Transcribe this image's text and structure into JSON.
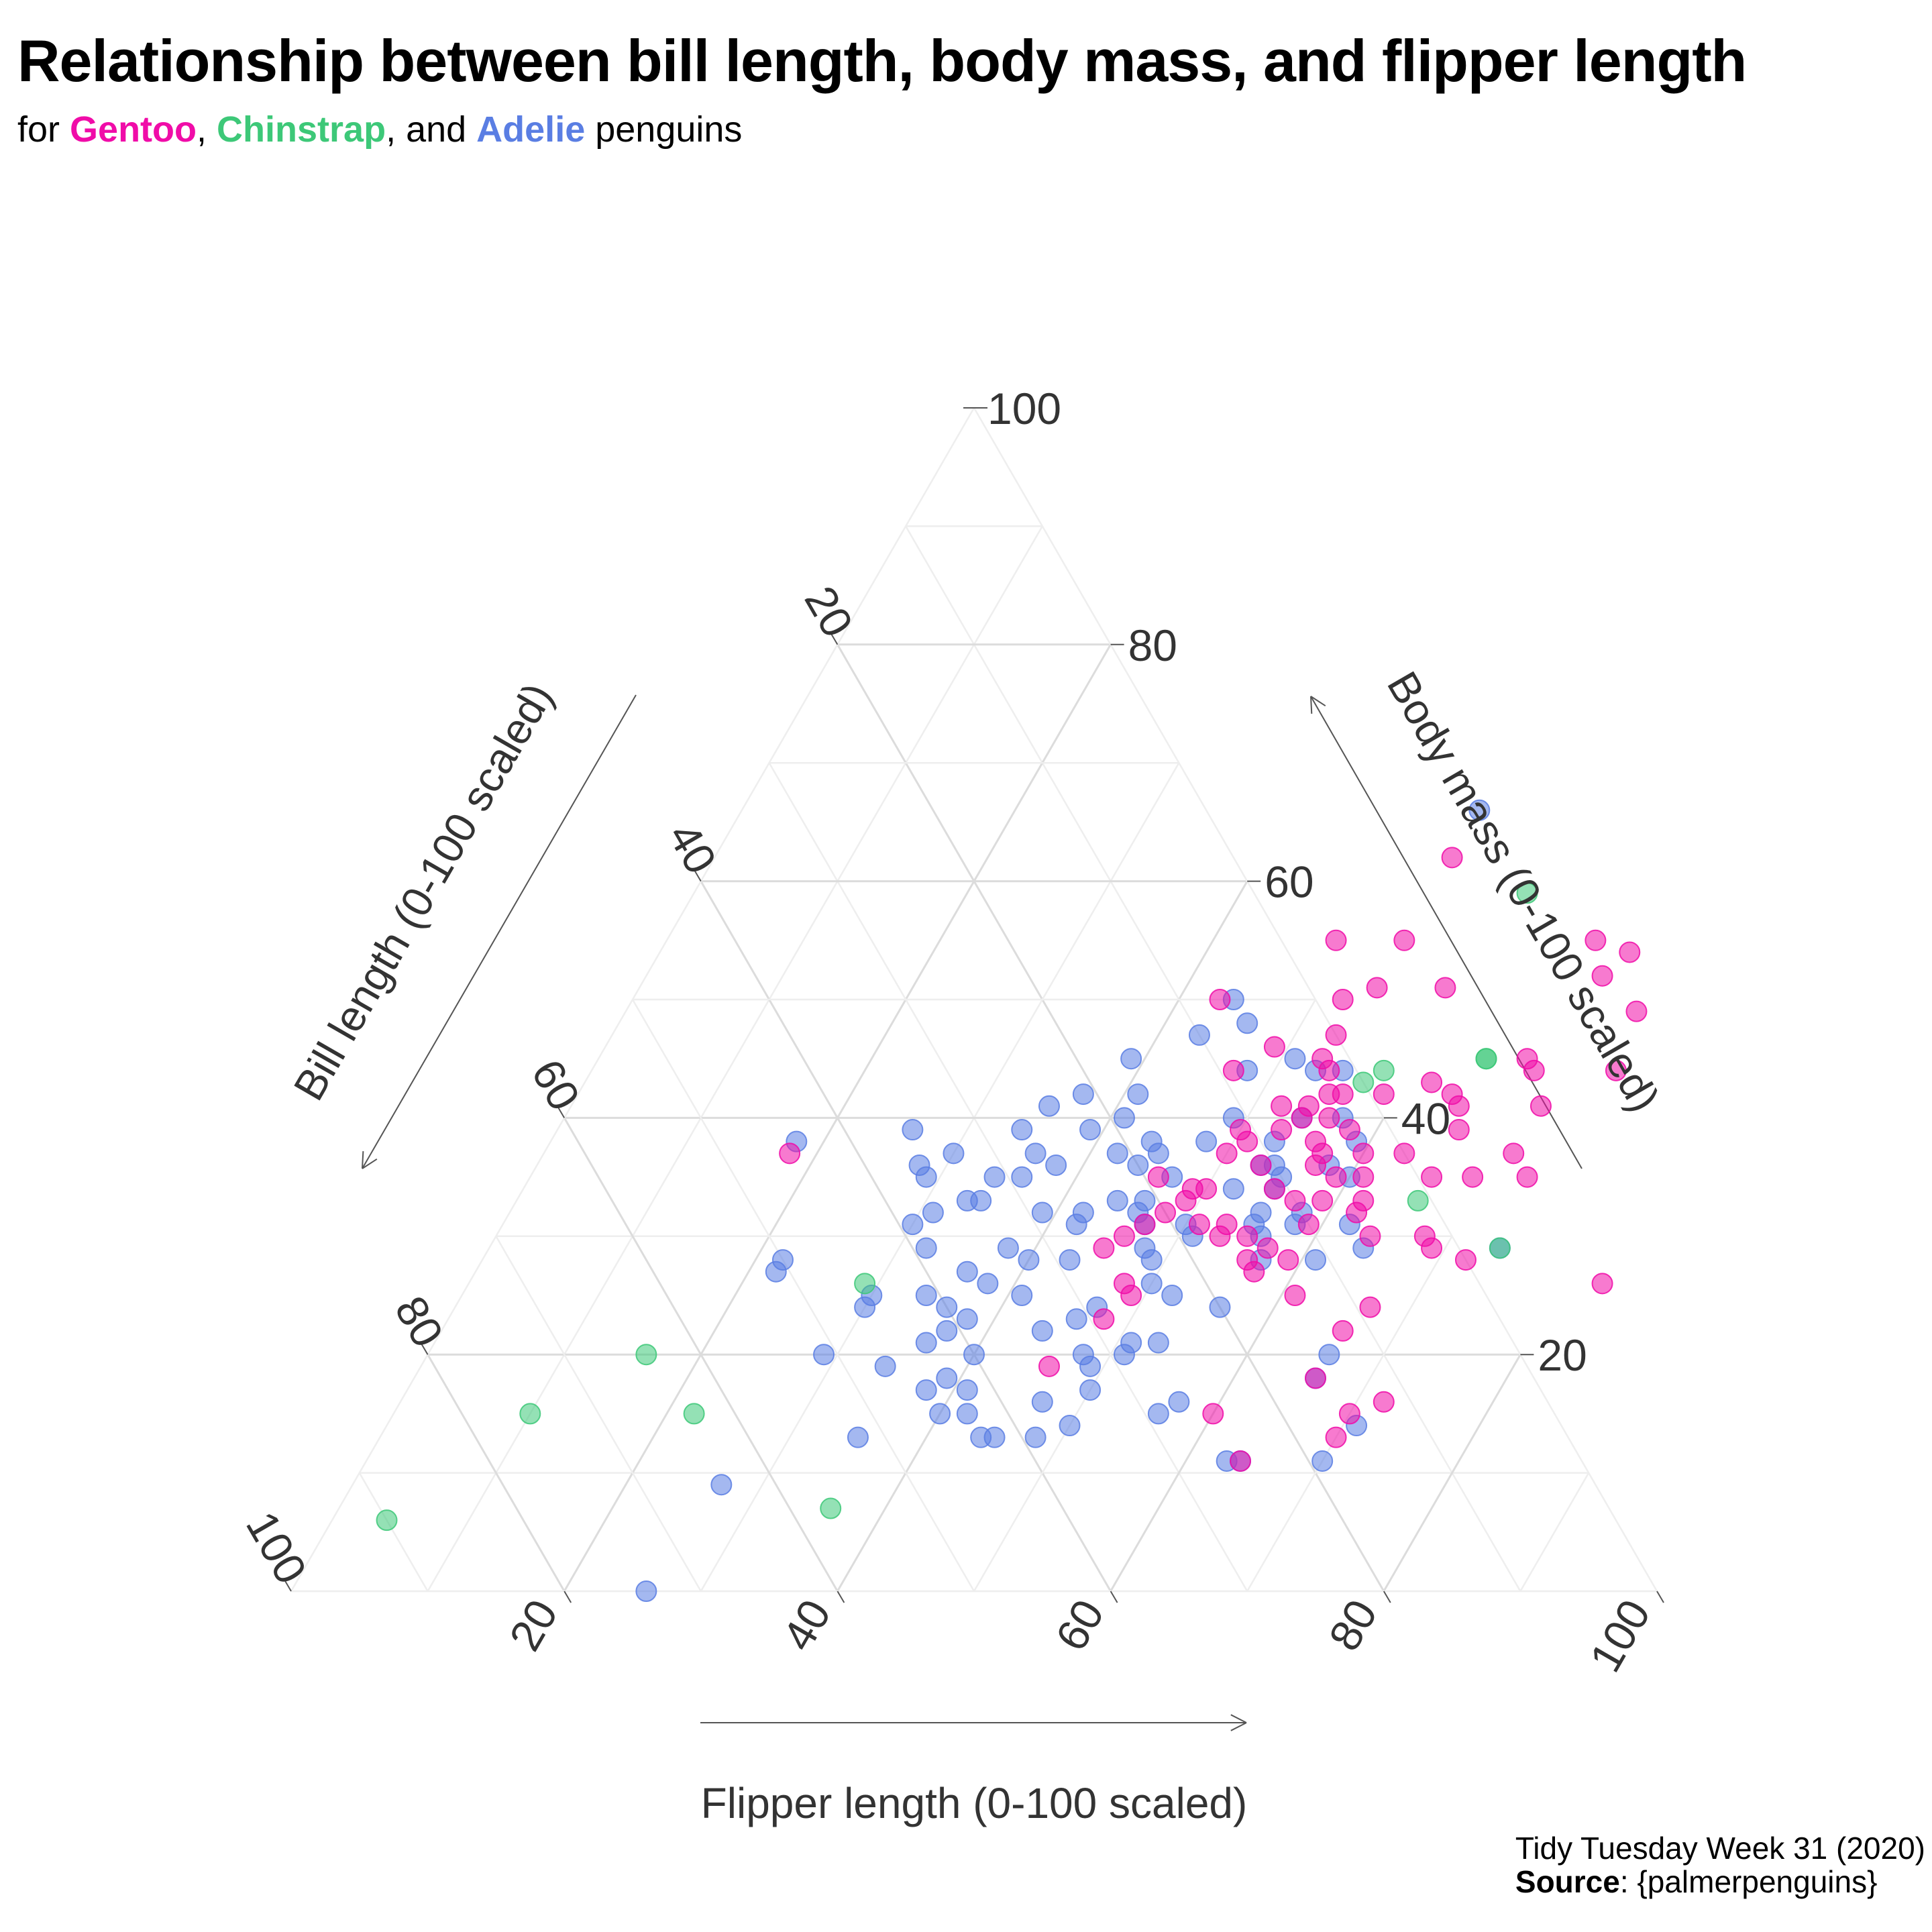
{
  "header": {
    "title": "Relationship between bill length, body mass, and flipper length",
    "subtitle_prefix": "for ",
    "species_gentoo": "Gentoo",
    "sep1": ", ",
    "species_chinstrap": "Chinstrap",
    "sep2": ", and ",
    "species_adelie": "Adelie",
    "subtitle_suffix": " penguins"
  },
  "caption": {
    "line1": "Tidy Tuesday Week 31 (2020)",
    "source_label": "Source",
    "source_value": ": {palmerpenguins}"
  },
  "colors": {
    "Gentoo": "#f00ca8",
    "Chinstrap": "#3dc878",
    "Adelie": "#5a7ee3",
    "grid_major": "#dcdcdc",
    "grid_minor": "#eeeeee",
    "text": "#333333"
  },
  "chart_data": {
    "type": "scatter",
    "subtype": "ternary",
    "axis_labels": {
      "bill": "Bill length (0-100 scaled)",
      "mass": "Body mass (0-100 scaled)",
      "flipper": "Flipper length (0-100 scaled)"
    },
    "ticks": [
      "20",
      "40",
      "60",
      "80",
      "100"
    ],
    "top_tick": "100",
    "range": [
      0,
      100
    ],
    "grid": true,
    "point_order": [
      "flipper",
      "mass"
    ],
    "series": [
      {
        "name": "Adelie",
        "points": [
          [
            54,
            66
          ],
          [
            44,
            50
          ],
          [
            46,
            48
          ],
          [
            43,
            47
          ],
          [
            51,
            45
          ],
          [
            55,
            44
          ],
          [
            39,
            45
          ],
          [
            48,
            44
          ],
          [
            53,
            44
          ],
          [
            41,
            42
          ],
          [
            37,
            42
          ],
          [
            35,
            41
          ],
          [
            41,
            40
          ],
          [
            49,
            40
          ],
          [
            54,
            40
          ],
          [
            57,
            40
          ],
          [
            39,
            39
          ],
          [
            26,
            39
          ],
          [
            34,
            39
          ],
          [
            44,
            38
          ],
          [
            48,
            38
          ],
          [
            59,
            38
          ],
          [
            53,
            38
          ],
          [
            36,
            37
          ],
          [
            42,
            37
          ],
          [
            45,
            37
          ],
          [
            30,
            37
          ],
          [
            28,
            36
          ],
          [
            38,
            36
          ],
          [
            44,
            36
          ],
          [
            54,
            36
          ],
          [
            58,
            36
          ],
          [
            53,
            36
          ],
          [
            29,
            35
          ],
          [
            34,
            35
          ],
          [
            36,
            35
          ],
          [
            47,
            35
          ],
          [
            55,
            35
          ],
          [
            60,
            35
          ],
          [
            52,
            34
          ],
          [
            55,
            34
          ],
          [
            33,
            33
          ],
          [
            34,
            33
          ],
          [
            44,
            33
          ],
          [
            46,
            33
          ],
          [
            31,
            32
          ],
          [
            39,
            32
          ],
          [
            42,
            32
          ],
          [
            46,
            32
          ],
          [
            55,
            32
          ],
          [
            58,
            32
          ],
          [
            30,
            31
          ],
          [
            42,
            31
          ],
          [
            47,
            31
          ],
          [
            50,
            31
          ],
          [
            55,
            31
          ],
          [
            58,
            31
          ],
          [
            62,
            31
          ],
          [
            51,
            30
          ],
          [
            56,
            30
          ],
          [
            32,
            29
          ],
          [
            38,
            29
          ],
          [
            48,
            29
          ],
          [
            64,
            29
          ],
          [
            74,
            29
          ],
          [
            40,
            28
          ],
          [
            43,
            28
          ],
          [
            49,
            28
          ],
          [
            57,
            28
          ],
          [
            61,
            28
          ],
          [
            22,
            28
          ],
          [
            36,
            27
          ],
          [
            22,
            27
          ],
          [
            38,
            26
          ],
          [
            50,
            26
          ],
          [
            52,
            25
          ],
          [
            41,
            25
          ],
          [
            30,
            25
          ],
          [
            34,
            25
          ],
          [
            47,
            24
          ],
          [
            56,
            24
          ],
          [
            30,
            24
          ],
          [
            36,
            24
          ],
          [
            38,
            23
          ],
          [
            46,
            23
          ],
          [
            37,
            22
          ],
          [
            44,
            22
          ],
          [
            51,
            21
          ],
          [
            53,
            21
          ],
          [
            36,
            21
          ],
          [
            40,
            20
          ],
          [
            48,
            20
          ],
          [
            51,
            20
          ],
          [
            49,
            19
          ],
          [
            29,
            20
          ],
          [
            34,
            19
          ],
          [
            66,
            18
          ],
          [
            38,
            17
          ],
          [
            39,
            18
          ],
          [
            41,
            17
          ],
          [
            47,
            16
          ],
          [
            57,
            16
          ],
          [
            42,
            15
          ],
          [
            40,
            15
          ],
          [
            50,
            14
          ],
          [
            71,
            14
          ],
          [
            48,
            13
          ],
          [
            35,
            13
          ],
          [
            45,
            13
          ],
          [
            27,
            9
          ],
          [
            70,
            11
          ],
          [
            63,
            11
          ],
          [
            64,
            11
          ],
          [
            44,
            13
          ],
          [
            56,
            15
          ],
          [
            50,
            17
          ],
          [
            66,
            20
          ],
          [
            26,
            0
          ],
          [
            18,
            38
          ]
        ]
      },
      {
        "name": "Gentoo",
        "points": [
          [
            54,
            62
          ],
          [
            54,
            55
          ],
          [
            49,
            55
          ],
          [
            68,
            55
          ],
          [
            71,
            54
          ],
          [
            70,
            52
          ],
          [
            43,
            50
          ],
          [
            54,
            51
          ],
          [
            52,
            50
          ],
          [
            59,
            51
          ],
          [
            74,
            49
          ],
          [
            53,
            47
          ],
          [
            49,
            46
          ],
          [
            53,
            45
          ],
          [
            68,
            45
          ],
          [
            47,
            44
          ],
          [
            54,
            44
          ],
          [
            56,
            42
          ],
          [
            69,
            44
          ],
          [
            75,
            44
          ],
          [
            55,
            42
          ],
          [
            59,
            42
          ],
          [
            62,
            43
          ],
          [
            52,
            41
          ],
          [
            54,
            41
          ],
          [
            64,
            42
          ],
          [
            65,
            41
          ],
          [
            71,
            41
          ],
          [
            54,
            40
          ],
          [
            56,
            40
          ],
          [
            50,
            39
          ],
          [
            53,
            39
          ],
          [
            58,
            39
          ],
          [
            66,
            39
          ],
          [
            51,
            38
          ],
          [
            56,
            38
          ],
          [
            57,
            37
          ],
          [
            60,
            37
          ],
          [
            63,
            37
          ],
          [
            50,
            37
          ],
          [
            71,
            37
          ],
          [
            53,
            36
          ],
          [
            57,
            36
          ],
          [
            59,
            35
          ],
          [
            61,
            35
          ],
          [
            69,
            35
          ],
          [
            73,
            35
          ],
          [
            46,
            35
          ],
          [
            66,
            35
          ],
          [
            49,
            34
          ],
          [
            50,
            34
          ],
          [
            55,
            34
          ],
          [
            57,
            33
          ],
          [
            59,
            33
          ],
          [
            62,
            33
          ],
          [
            49,
            33
          ],
          [
            48,
            32
          ],
          [
            62,
            32
          ],
          [
            47,
            31
          ],
          [
            51,
            31
          ],
          [
            53,
            31
          ],
          [
            59,
            31
          ],
          [
            53,
            30
          ],
          [
            55,
            30
          ],
          [
            64,
            30
          ],
          [
            68,
            30
          ],
          [
            46,
            30
          ],
          [
            57,
            29
          ],
          [
            59,
            28
          ],
          [
            72,
            28
          ],
          [
            56,
            28
          ],
          [
            69,
            29
          ],
          [
            45,
            29
          ],
          [
            57,
            27
          ],
          [
            48,
            26
          ],
          [
            49,
            25
          ],
          [
            61,
            25
          ],
          [
            67,
            24
          ],
          [
            48,
            23
          ],
          [
            66,
            22
          ],
          [
            83,
            26
          ],
          [
            66,
            18
          ],
          [
            72,
            16
          ],
          [
            60,
            15
          ],
          [
            70,
            15
          ],
          [
            64,
            11
          ],
          [
            18,
            37
          ],
          [
            70,
            13
          ],
          [
            46,
            19
          ]
        ]
      },
      {
        "name": "Chinstrap",
        "points": [
          [
            61,
            59
          ],
          [
            65,
            45
          ],
          [
            65,
            45
          ],
          [
            58,
            44
          ],
          [
            74,
            29
          ],
          [
            57,
            43
          ],
          [
            29,
            26
          ],
          [
            16,
            20
          ],
          [
            22,
            15
          ],
          [
            10,
            15
          ],
          [
            4,
            6
          ],
          [
            36,
            7
          ],
          [
            66,
            33
          ]
        ]
      }
    ]
  }
}
